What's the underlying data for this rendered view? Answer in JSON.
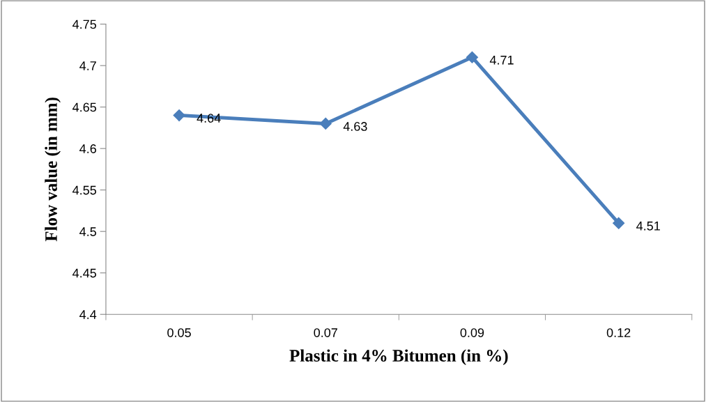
{
  "chart_data": {
    "type": "line",
    "xlabel": "Plastic in 4% Bitumen (in %)",
    "ylabel": "Flow value (in mm)",
    "categories": [
      "0.05",
      "0.07",
      "0.09",
      "0.12"
    ],
    "series": [
      {
        "color": "#4a7ebb",
        "values": [
          4.64,
          4.63,
          4.71,
          4.51
        ]
      }
    ],
    "ylim": [
      4.4,
      4.75
    ],
    "yticks": [
      4.4,
      4.45,
      4.5,
      4.55,
      4.6,
      4.65,
      4.7,
      4.75
    ],
    "data_labels": true,
    "marker": "diamond",
    "line_style": "solid",
    "grid": false,
    "legend": false
  }
}
